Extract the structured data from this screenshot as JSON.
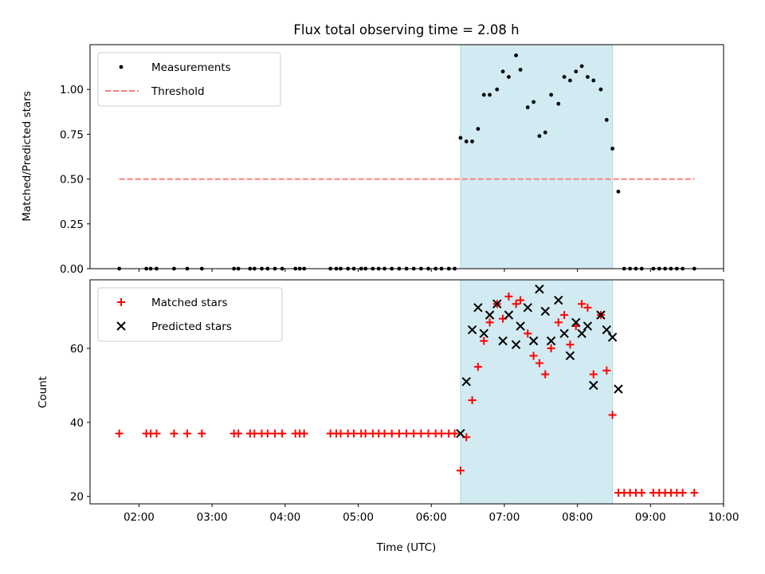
{
  "chart_data": [
    {
      "type": "scatter",
      "title": "Flux total observing time = 2.08 h",
      "xlabel": "",
      "ylabel": "Matched/Predicted stars",
      "xlim": [
        1.33,
        10.0
      ],
      "ylim": [
        0.0,
        1.25
      ],
      "yticks": [
        0.0,
        0.25,
        0.5,
        0.75,
        1.0
      ],
      "ytick_labels": [
        "0.00",
        "0.25",
        "0.50",
        "0.75",
        "1.00"
      ],
      "grid": false,
      "legend_position": "upper-left",
      "highlight_span": [
        6.4,
        8.48
      ],
      "highlight_color": "#add8e6",
      "series": [
        {
          "name": "Measurements",
          "kind": "points",
          "color": "#000000",
          "x": [
            1.73,
            2.1,
            2.16,
            2.24,
            2.48,
            2.66,
            2.86,
            3.3,
            3.36,
            3.52,
            3.58,
            3.68,
            3.76,
            3.86,
            3.96,
            4.14,
            4.2,
            4.26,
            4.62,
            4.7,
            4.76,
            4.86,
            4.94,
            5.04,
            5.1,
            5.2,
            5.28,
            5.36,
            5.46,
            5.56,
            5.66,
            5.76,
            5.86,
            5.96,
            6.06,
            6.14,
            6.24,
            6.32,
            6.4,
            6.48,
            6.56,
            6.64,
            6.72,
            6.8,
            6.9,
            6.98,
            7.06,
            7.16,
            7.22,
            7.32,
            7.4,
            7.48,
            7.56,
            7.64,
            7.74,
            7.82,
            7.9,
            7.98,
            8.06,
            8.14,
            8.22,
            8.32,
            8.4,
            8.48,
            8.56,
            8.64,
            8.72,
            8.8,
            8.88,
            9.04,
            9.12,
            9.2,
            9.28,
            9.36,
            9.44,
            9.6
          ],
          "y": [
            0.0,
            0.0,
            0.0,
            0.0,
            0.0,
            0.0,
            0.0,
            0.0,
            0.0,
            0.0,
            0.0,
            0.0,
            0.0,
            0.0,
            0.0,
            0.0,
            0.0,
            0.0,
            0.0,
            0.0,
            0.0,
            0.0,
            0.0,
            0.0,
            0.0,
            0.0,
            0.0,
            0.0,
            0.0,
            0.0,
            0.0,
            0.0,
            0.0,
            0.0,
            0.0,
            0.0,
            0.0,
            0.0,
            0.73,
            0.71,
            0.71,
            0.78,
            0.97,
            0.97,
            1.0,
            1.1,
            1.07,
            1.19,
            1.11,
            0.9,
            0.93,
            0.74,
            0.76,
            0.97,
            0.92,
            1.07,
            1.05,
            1.1,
            1.13,
            1.07,
            1.05,
            1.0,
            0.83,
            0.67,
            0.43,
            0.0,
            0.0,
            0.0,
            0.0,
            0.0,
            0.0,
            0.0,
            0.0,
            0.0,
            0.0,
            0.0
          ]
        },
        {
          "name": "Threshold",
          "kind": "dashed-line",
          "color": "#ff7f7f",
          "x": [
            1.73,
            9.6
          ],
          "y": [
            0.5,
            0.5
          ]
        }
      ]
    },
    {
      "type": "scatter",
      "title": "",
      "xlabel": "Time (UTC)",
      "ylabel": "Count",
      "xlim": [
        1.33,
        10.0
      ],
      "ylim": [
        18.0,
        78.5
      ],
      "xticks": [
        2,
        3,
        4,
        5,
        6,
        7,
        8,
        9,
        10
      ],
      "xtick_labels": [
        "02:00",
        "03:00",
        "04:00",
        "05:00",
        "06:00",
        "07:00",
        "08:00",
        "09:00",
        "10:00"
      ],
      "yticks": [
        20,
        40,
        60
      ],
      "ytick_labels": [
        "20",
        "40",
        "60"
      ],
      "grid": false,
      "legend_position": "upper-left",
      "highlight_span": [
        6.4,
        8.48
      ],
      "highlight_color": "#add8e6",
      "series": [
        {
          "name": "Matched stars",
          "kind": "plus",
          "color": "#ff0000",
          "x": [
            1.73,
            2.1,
            2.16,
            2.24,
            2.48,
            2.66,
            2.86,
            3.3,
            3.36,
            3.52,
            3.58,
            3.68,
            3.76,
            3.86,
            3.96,
            4.14,
            4.2,
            4.26,
            4.62,
            4.7,
            4.76,
            4.86,
            4.94,
            5.04,
            5.1,
            5.2,
            5.28,
            5.36,
            5.46,
            5.56,
            5.66,
            5.76,
            5.86,
            5.96,
            6.06,
            6.14,
            6.24,
            6.32,
            6.4,
            6.48,
            6.56,
            6.64,
            6.72,
            6.8,
            6.9,
            6.98,
            7.06,
            7.16,
            7.22,
            7.32,
            7.4,
            7.48,
            7.56,
            7.64,
            7.74,
            7.82,
            7.9,
            7.98,
            8.06,
            8.14,
            8.22,
            8.32,
            8.4,
            8.48,
            8.56,
            8.64,
            8.72,
            8.8,
            8.88,
            9.04,
            9.12,
            9.2,
            9.28,
            9.36,
            9.44,
            9.6
          ],
          "y": [
            37,
            37,
            37,
            37,
            37,
            37,
            37,
            37,
            37,
            37,
            37,
            37,
            37,
            37,
            37,
            37,
            37,
            37,
            37,
            37,
            37,
            37,
            37,
            37,
            37,
            37,
            37,
            37,
            37,
            37,
            37,
            37,
            37,
            37,
            37,
            37,
            37,
            37,
            27,
            36,
            46,
            55,
            62,
            67,
            72,
            68,
            74,
            72,
            73,
            64,
            58,
            56,
            53,
            60,
            67,
            69,
            61,
            66,
            72,
            71,
            53,
            69,
            54,
            42,
            21,
            21,
            21,
            21,
            21,
            21,
            21,
            21,
            21,
            21,
            21,
            21
          ]
        },
        {
          "name": "Predicted stars",
          "kind": "cross",
          "color": "#000000",
          "x": [
            6.4,
            6.48,
            6.56,
            6.64,
            6.72,
            6.8,
            6.9,
            6.98,
            7.06,
            7.16,
            7.22,
            7.32,
            7.4,
            7.48,
            7.56,
            7.64,
            7.74,
            7.82,
            7.9,
            7.98,
            8.06,
            8.14,
            8.22,
            8.32,
            8.4,
            8.48,
            8.56
          ],
          "y": [
            37,
            51,
            65,
            71,
            64,
            69,
            72,
            62,
            69,
            61,
            66,
            71,
            62,
            76,
            70,
            62,
            73,
            64,
            58,
            67,
            64,
            66,
            50,
            69,
            65,
            63,
            49
          ]
        }
      ]
    }
  ]
}
